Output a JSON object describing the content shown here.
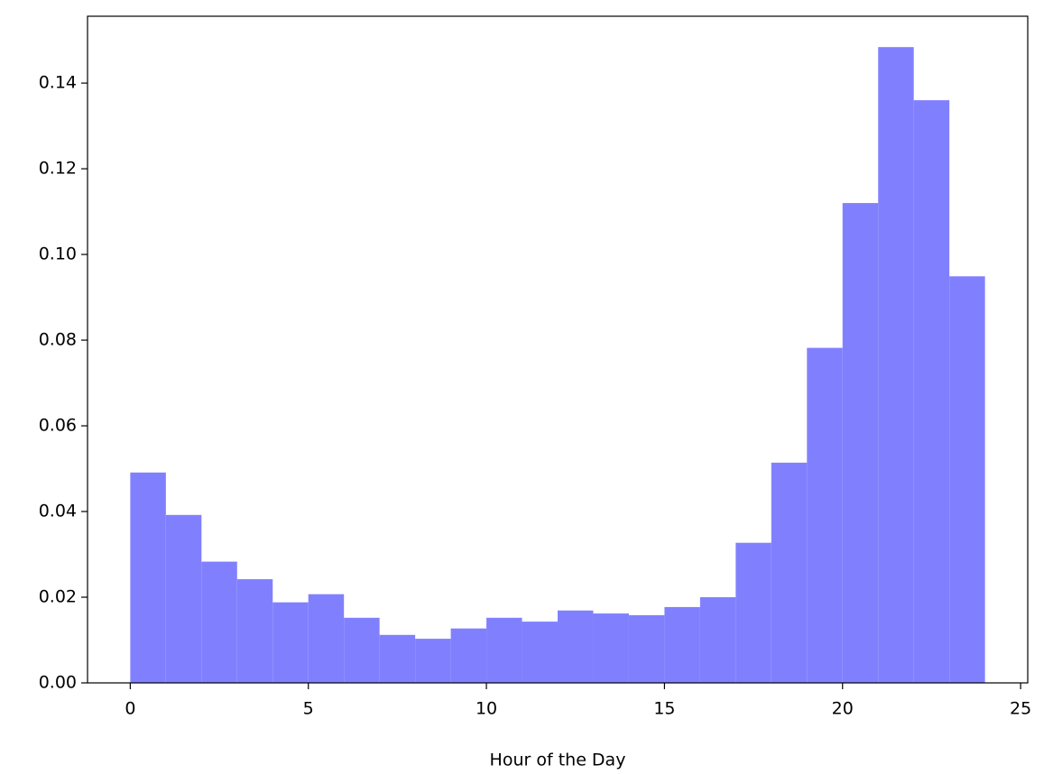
{
  "chart_data": {
    "type": "histogram",
    "x_label": "Hour of the Day",
    "bins": [
      0,
      1,
      2,
      3,
      4,
      5,
      6,
      7,
      8,
      9,
      10,
      11,
      12,
      13,
      14,
      15,
      16,
      17,
      18,
      19,
      20,
      21,
      22,
      23,
      24
    ],
    "values": [
      0.0491,
      0.0392,
      0.0283,
      0.0242,
      0.0188,
      0.0207,
      0.0152,
      0.0112,
      0.0103,
      0.0127,
      0.0152,
      0.0143,
      0.0169,
      0.0162,
      0.0158,
      0.0177,
      0.02,
      0.0327,
      0.0514,
      0.0782,
      0.112,
      0.1484,
      0.136,
      0.0949
    ],
    "color": "#8080ff",
    "xlim": [
      -1.2,
      25.2
    ],
    "xticks": [
      0,
      5,
      10,
      15,
      20,
      25
    ],
    "ylim": [
      0,
      0.1556
    ],
    "yticks": [
      {
        "value": 0,
        "label": "0.00"
      },
      {
        "value": 0.02,
        "label": "0.02"
      },
      {
        "value": 0.04,
        "label": "0.04"
      },
      {
        "value": 0.06,
        "label": "0.06"
      },
      {
        "value": 0.08,
        "label": "0.08"
      },
      {
        "value": 0.1,
        "label": "0.10"
      },
      {
        "value": 0.12,
        "label": "0.12"
      },
      {
        "value": 0.14,
        "label": "0.14"
      }
    ],
    "grid": false
  }
}
